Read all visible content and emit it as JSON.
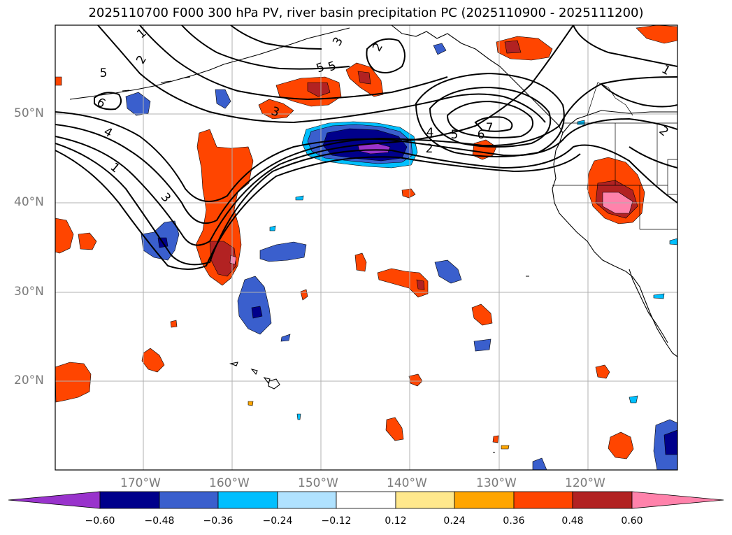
{
  "title": "2025110700 F000 300 hPa PV, river basin precipitation PC (2025110900 - 2025111200)",
  "axes": {
    "lat_labels": [
      "50°N",
      "40°N",
      "30°N",
      "20°N"
    ],
    "lon_labels": [
      "170°W",
      "160°W",
      "150°W",
      "140°W",
      "130°W",
      "120°W"
    ],
    "lat_values": [
      50,
      40,
      30,
      20
    ],
    "lon_values": [
      -170,
      -160,
      -150,
      -140,
      -130,
      -120
    ],
    "lon_range": [
      -180,
      -110
    ],
    "lat_range": [
      10,
      60
    ]
  },
  "colorbar": {
    "tick_labels": [
      "−0.60",
      "−0.48",
      "−0.36",
      "−0.24",
      "−0.12",
      "0.12",
      "0.24",
      "0.36",
      "0.48",
      "0.60"
    ],
    "colors": [
      "#9933cc",
      "#00008b",
      "#3a5fcd",
      "#00bfff",
      "#b0e2ff",
      "#ffffff",
      "#ffe88c",
      "#ffa500",
      "#ff4500",
      "#b22222",
      "#ff82ab"
    ]
  },
  "contour_labels": [
    "1",
    "2",
    "5",
    "6",
    "4",
    "1",
    "3",
    "3",
    "5",
    "3",
    "2",
    "5",
    "4",
    "5",
    "6",
    "7",
    "2",
    "1",
    "2"
  ],
  "chart_data": {
    "type": "map",
    "title": "2025110700 F000 300 hPa PV, river basin precipitation PC (2025110900 - 2025111200)",
    "fields": [
      "300 hPa PV contours (PVU)",
      "precipitation PC (shaded)"
    ],
    "contour_levels": [
      1,
      2,
      3,
      4,
      5,
      6,
      7
    ],
    "shading_levels": [
      -0.6,
      -0.48,
      -0.36,
      -0.24,
      -0.12,
      0.12,
      0.24,
      0.36,
      0.48,
      0.6
    ],
    "lon_range": [
      -180,
      -110
    ],
    "lat_range": [
      10,
      60
    ]
  }
}
